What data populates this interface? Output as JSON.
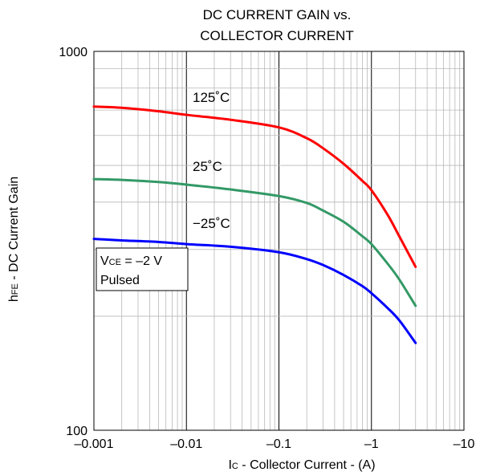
{
  "chart_data": {
    "type": "line",
    "title_lines": [
      "DC CURRENT GAIN vs.",
      "COLLECTOR CURRENT"
    ],
    "xlabel": {
      "main": "I",
      "sub": "C",
      "rest": " - Collector Current - (A)"
    },
    "ylabel": {
      "main": "h",
      "sub": "FE",
      "rest": " - DC Current Gain"
    },
    "x_scale": "log",
    "y_scale": "log",
    "x_magnitude_range": [
      0.001,
      10
    ],
    "ylim": [
      100,
      1000
    ],
    "x_ticks": [
      {
        "value": 0.001,
        "label": "–0.001"
      },
      {
        "value": 0.01,
        "label": "–0.01"
      },
      {
        "value": 0.1,
        "label": "–0.1"
      },
      {
        "value": 1,
        "label": "–1"
      },
      {
        "value": 10,
        "label": "–10"
      }
    ],
    "y_ticks": [
      {
        "value": 100,
        "label": "100"
      },
      {
        "value": 1000,
        "label": "1000"
      }
    ],
    "grid": true,
    "series": [
      {
        "name": "125˚C",
        "color": "#ff0000",
        "points": [
          [
            0.001,
            715
          ],
          [
            0.002,
            710
          ],
          [
            0.005,
            695
          ],
          [
            0.01,
            680
          ],
          [
            0.03,
            660
          ],
          [
            0.1,
            630
          ],
          [
            0.2,
            590
          ],
          [
            0.3,
            555
          ],
          [
            0.5,
            505
          ],
          [
            0.8,
            455
          ],
          [
            1.0,
            430
          ],
          [
            1.5,
            370
          ],
          [
            2.0,
            325
          ],
          [
            3.0,
            270
          ]
        ]
      },
      {
        "name": "25˚C",
        "color": "#339966",
        "points": [
          [
            0.001,
            460
          ],
          [
            0.002,
            458
          ],
          [
            0.005,
            452
          ],
          [
            0.01,
            445
          ],
          [
            0.03,
            432
          ],
          [
            0.1,
            415
          ],
          [
            0.2,
            398
          ],
          [
            0.3,
            380
          ],
          [
            0.5,
            355
          ],
          [
            0.8,
            325
          ],
          [
            1.0,
            310
          ],
          [
            1.5,
            275
          ],
          [
            2.0,
            250
          ],
          [
            3.0,
            213
          ]
        ]
      },
      {
        "name": "−25˚C",
        "color": "#0000ff",
        "points": [
          [
            0.001,
            320
          ],
          [
            0.002,
            317
          ],
          [
            0.005,
            314
          ],
          [
            0.01,
            310
          ],
          [
            0.03,
            305
          ],
          [
            0.1,
            295
          ],
          [
            0.2,
            283
          ],
          [
            0.3,
            273
          ],
          [
            0.5,
            257
          ],
          [
            0.8,
            240
          ],
          [
            1.0,
            230
          ],
          [
            1.5,
            210
          ],
          [
            2.0,
            195
          ],
          [
            3.0,
            170
          ]
        ]
      }
    ],
    "legend": {
      "line1": {
        "main": "V",
        "sub": "CE",
        "rest": " = –2 V"
      },
      "line2": "Pulsed"
    }
  }
}
